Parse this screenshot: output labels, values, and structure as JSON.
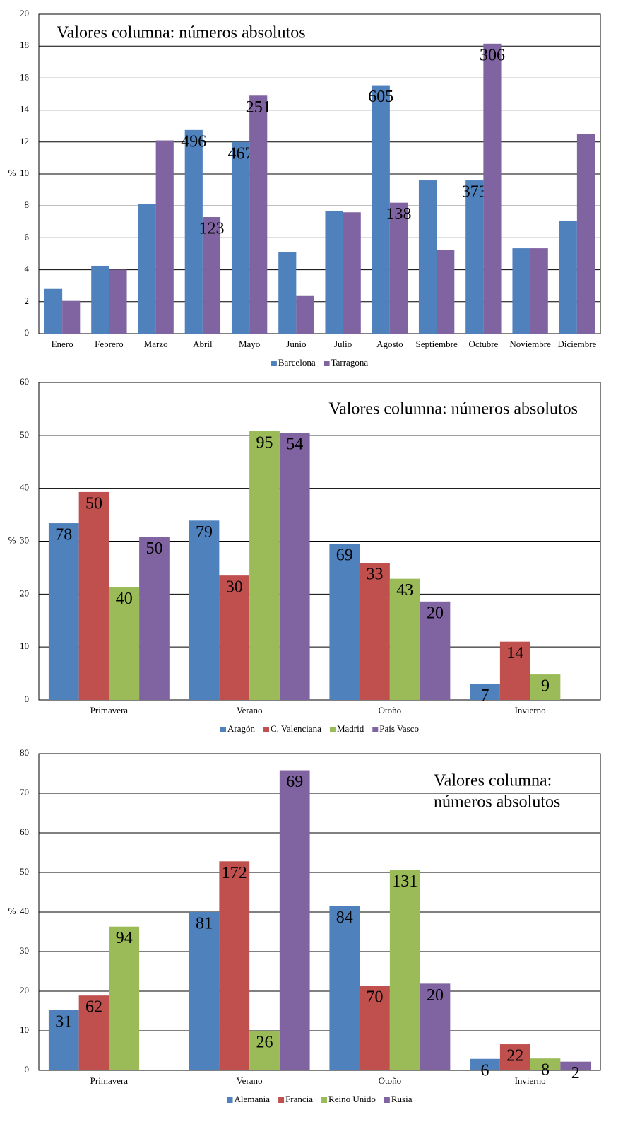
{
  "chart_data": [
    {
      "type": "bar",
      "annotation": "Valores columna: números absolutos",
      "y_label": "%",
      "categories": [
        "Enero",
        "Febrero",
        "Marzo",
        "Abril",
        "Mayo",
        "Junio",
        "Julio",
        "Agosto",
        "Septiembre",
        "Octubre",
        "Noviembre",
        "Diciembre"
      ],
      "series": [
        {
          "name": "Barcelona",
          "color": "#4f81bd",
          "values": [
            2.8,
            4.25,
            8.1,
            12.75,
            12.0,
            5.1,
            7.7,
            15.55,
            9.6,
            9.6,
            5.35,
            7.05
          ],
          "annotations": [
            null,
            null,
            null,
            496,
            467,
            null,
            null,
            605,
            null,
            373,
            null,
            null
          ]
        },
        {
          "name": "Tarragona",
          "color": "#8064a2",
          "values": [
            2.05,
            4.0,
            12.1,
            7.3,
            14.9,
            2.4,
            7.6,
            8.2,
            5.25,
            18.15,
            5.35,
            12.5
          ],
          "annotations": [
            null,
            null,
            null,
            123,
            251,
            null,
            null,
            138,
            null,
            306,
            null,
            null
          ]
        }
      ],
      "ylim": [
        0,
        20
      ],
      "yticks": [
        0,
        2,
        4,
        6,
        8,
        10,
        12,
        14,
        16,
        18,
        20
      ],
      "grid": true,
      "legend": "bottom"
    },
    {
      "type": "bar",
      "annotation": "Valores columna: números absolutos",
      "y_label": "%",
      "categories": [
        "Primavera",
        "Verano",
        "Otoño",
        "Invierno"
      ],
      "series": [
        {
          "name": "Aragón",
          "color": "#4f81bd",
          "values": [
            33.4,
            33.9,
            29.5,
            3.0
          ],
          "annotations": [
            78,
            79,
            69,
            7
          ]
        },
        {
          "name": "C. Valenciana",
          "color": "#c0504d",
          "values": [
            39.3,
            23.5,
            25.9,
            11.0
          ],
          "annotations": [
            50,
            30,
            33,
            14
          ]
        },
        {
          "name": "Madrid",
          "color": "#9bbb59",
          "values": [
            21.3,
            50.8,
            22.9,
            4.8
          ],
          "annotations": [
            40,
            95,
            43,
            9
          ]
        },
        {
          "name": "País Vasco",
          "color": "#8064a2",
          "values": [
            30.8,
            50.5,
            18.6,
            null
          ],
          "annotations": [
            50,
            54,
            20,
            null
          ]
        }
      ],
      "ylim": [
        0,
        60
      ],
      "yticks": [
        0,
        10,
        20,
        30,
        40,
        50,
        60
      ],
      "grid": true,
      "legend": "bottom"
    },
    {
      "type": "bar",
      "annotation": [
        "Valores columna:",
        "números absolutos"
      ],
      "y_label": "%",
      "categories": [
        "Primavera",
        "Verano",
        "Otoño",
        "Invierno"
      ],
      "series": [
        {
          "name": "Alemania",
          "color": "#4f81bd",
          "values": [
            15.2,
            40.0,
            41.5,
            2.9
          ],
          "annotations": [
            31,
            81,
            84,
            6
          ]
        },
        {
          "name": "Francia",
          "color": "#c0504d",
          "values": [
            18.9,
            52.8,
            21.4,
            6.6
          ],
          "annotations": [
            62,
            172,
            70,
            22
          ]
        },
        {
          "name": "Reino Unido",
          "color": "#9bbb59",
          "values": [
            36.3,
            10.0,
            50.6,
            3.0
          ],
          "annotations": [
            94,
            26,
            131,
            8
          ]
        },
        {
          "name": "Rusia",
          "color": "#8064a2",
          "values": [
            null,
            75.8,
            21.9,
            2.2
          ],
          "annotations": [
            null,
            69,
            20,
            2
          ]
        }
      ],
      "ylim": [
        0,
        80
      ],
      "yticks": [
        0,
        10,
        20,
        30,
        40,
        50,
        60,
        70,
        80
      ],
      "grid": true,
      "legend": "bottom"
    }
  ]
}
